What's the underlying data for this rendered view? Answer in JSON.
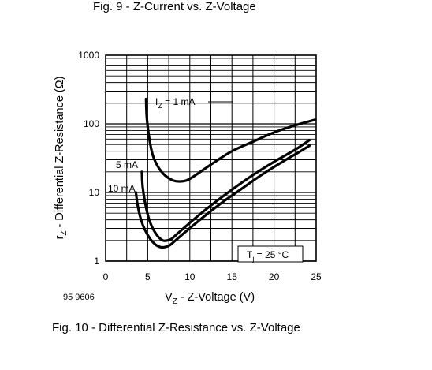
{
  "figures": {
    "top_caption": "Fig. 9 - Z-Current vs. Z-Voltage",
    "bottom_caption": "Fig. 10 - Differential Z-Resistance vs. Z-Voltage",
    "doc_number": "95 9606"
  },
  "chart_data": {
    "type": "line",
    "title": "",
    "xlabel_main": "V",
    "xlabel_sub": "Z",
    "xlabel_rest": " - Z-Voltage (V)",
    "ylabel_main": "r",
    "ylabel_sub": "Z",
    "ylabel_rest": " - Differential Z-Resistance (Ω)",
    "xlim": [
      0,
      25
    ],
    "ylim": [
      1,
      1000
    ],
    "yscale": "log",
    "grid": true,
    "x_ticks": [
      "0",
      "5",
      "10",
      "15",
      "20",
      "25"
    ],
    "y_ticks": [
      "1",
      "10",
      "100",
      "1000"
    ],
    "condition": {
      "main": "T",
      "sub": "j",
      "rest": " = 25 °C"
    },
    "line_color": "#000000",
    "series": [
      {
        "name": "I_Z = 1 mA",
        "label_main": "I",
        "label_sub": "Z",
        "label_rest": " = 1 mA",
        "x": [
          4.8,
          4.9,
          5.2,
          5.6,
          6.2,
          7.0,
          8.0,
          8.8,
          9.6,
          10.4,
          11.5,
          13.0,
          15.0,
          17.5,
          20.0,
          22.5,
          24.9
        ],
        "y": [
          230,
          120,
          60,
          35,
          24,
          18,
          15,
          14.5,
          15,
          17,
          21,
          28,
          40,
          55,
          75,
          95,
          115
        ]
      },
      {
        "name": "5 mA",
        "label_main": "5 mA",
        "x": [
          4.3,
          4.4,
          4.7,
          5.1,
          5.6,
          6.2,
          6.8,
          7.3,
          7.8,
          8.5,
          9.5,
          11.0,
          13.0,
          15.0,
          17.5,
          20.0,
          22.5,
          24.2
        ],
        "y": [
          20,
          12,
          7,
          4.3,
          3.0,
          2.3,
          2.0,
          2.0,
          2.1,
          2.5,
          3.2,
          4.6,
          7.2,
          11,
          18,
          28,
          42,
          58
        ]
      },
      {
        "name": "10 mA",
        "label_main": "10 mA",
        "x": [
          3.6,
          3.8,
          4.2,
          4.7,
          5.3,
          5.9,
          6.5,
          7.0,
          7.6,
          8.3,
          9.2,
          10.5,
          12.0,
          14.0,
          16.0,
          18.5,
          21.0,
          23.0,
          24.2
        ],
        "y": [
          10,
          6.5,
          4.0,
          2.8,
          2.1,
          1.75,
          1.6,
          1.6,
          1.7,
          2.0,
          2.5,
          3.4,
          4.8,
          7.4,
          11,
          18,
          28,
          39,
          48
        ]
      }
    ]
  }
}
